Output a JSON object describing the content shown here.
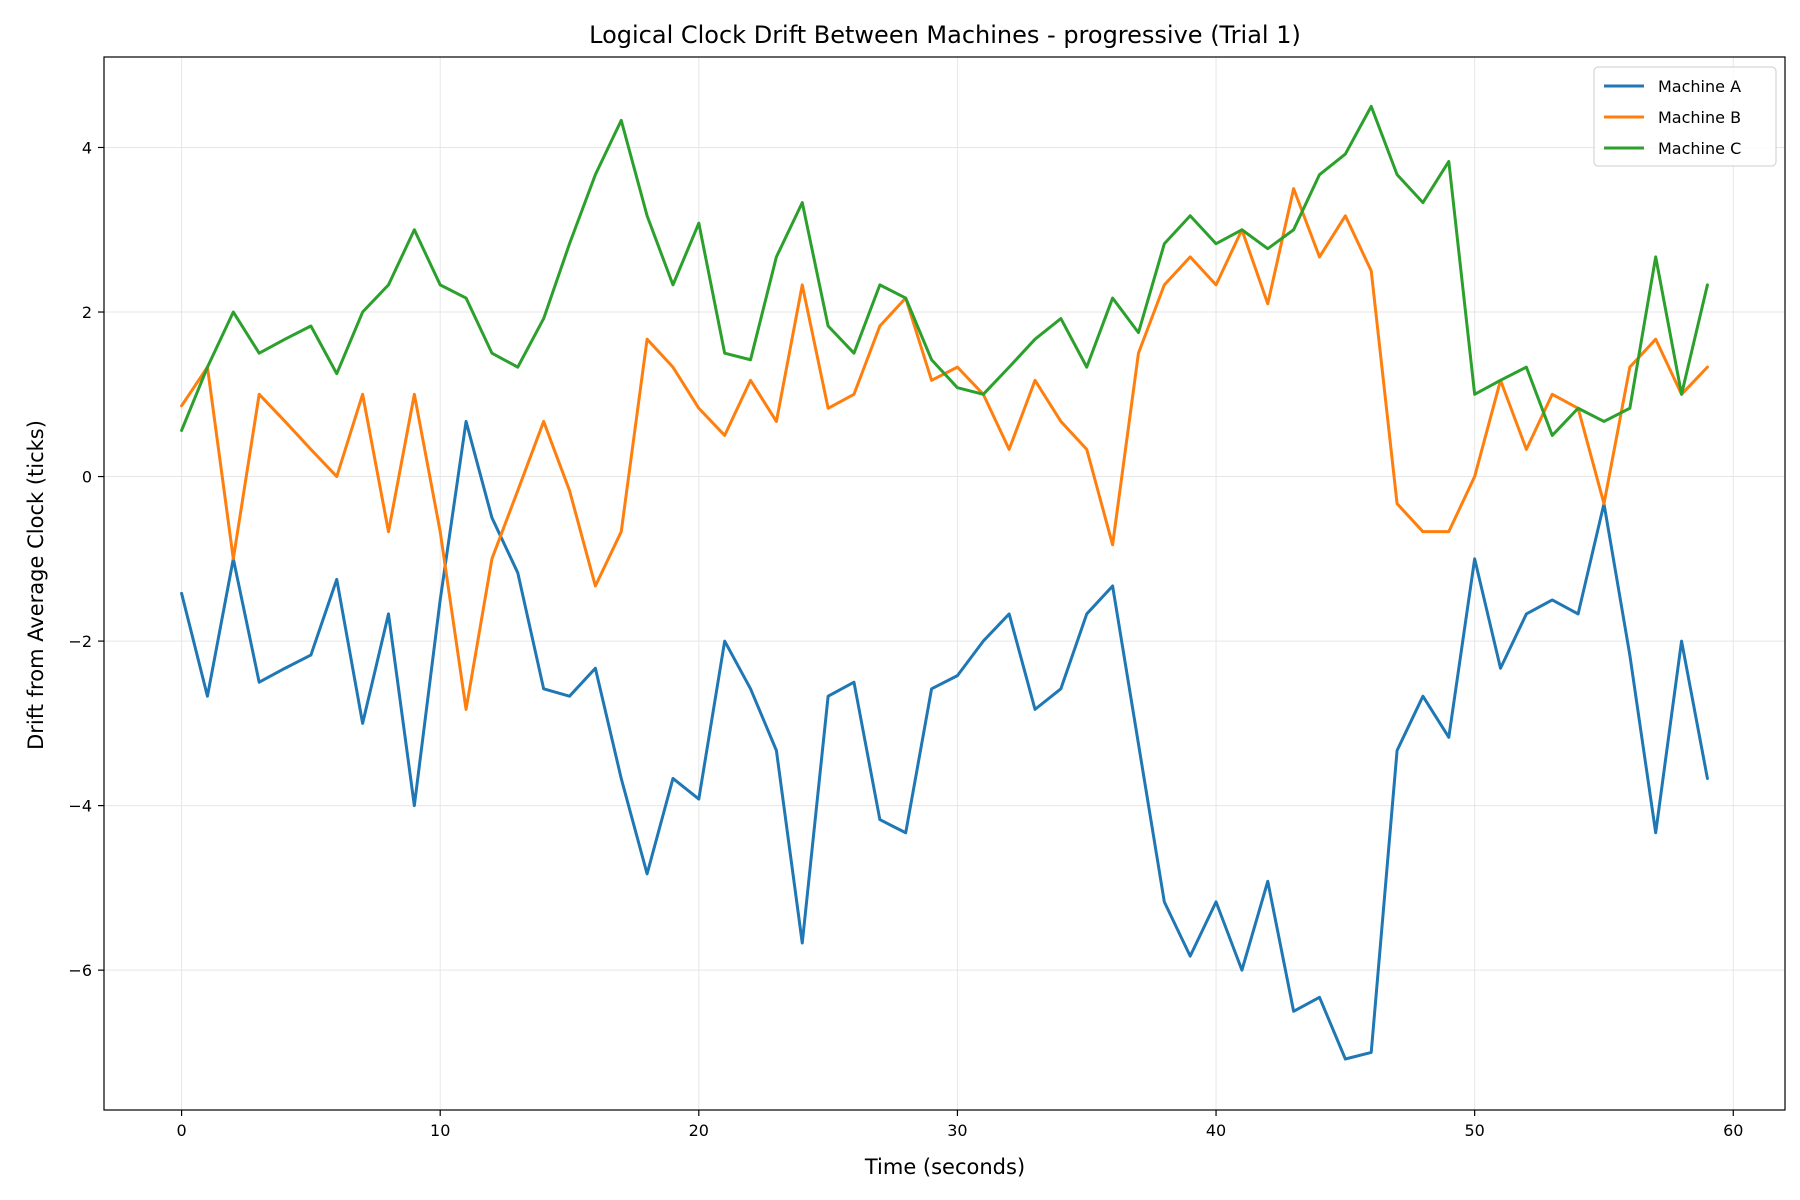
{
  "chart_data": {
    "type": "line",
    "title": "Logical Clock Drift Between Machines - progressive (Trial 1)",
    "xlabel": "Time (seconds)",
    "ylabel": "Drift from Average Clock (ticks)",
    "xlim": [
      -3,
      62
    ],
    "ylim": [
      -7.7,
      5.1
    ],
    "xticks": [
      0,
      10,
      20,
      30,
      40,
      50,
      60
    ],
    "yticks": [
      4,
      2,
      0,
      -2,
      -4,
      -6
    ],
    "ytick_labels": [
      "4",
      "2",
      "0",
      "−2",
      "−4",
      "−6"
    ],
    "grid": true,
    "legend_position": "top-right",
    "x": [
      0,
      1,
      2,
      3,
      4,
      5,
      6,
      7,
      8,
      9,
      10,
      11,
      12,
      13,
      14,
      15,
      16,
      17,
      18,
      19,
      20,
      21,
      22,
      23,
      24,
      25,
      26,
      27,
      28,
      29,
      30,
      31,
      32,
      33,
      34,
      35,
      36,
      37,
      38,
      39,
      40,
      41,
      42,
      43,
      44,
      45,
      46,
      47,
      48,
      49,
      50,
      51,
      52,
      53,
      54,
      55,
      56,
      57,
      58,
      59
    ],
    "series": [
      {
        "name": "Machine A",
        "color": "#1f77b4",
        "values": [
          -1.42,
          -2.67,
          -1.0,
          -2.5,
          -2.33,
          -2.17,
          -1.25,
          -3.0,
          -1.67,
          -4.0,
          -1.5,
          0.67,
          -0.5,
          -1.17,
          -2.58,
          -2.67,
          -2.33,
          -3.67,
          -4.83,
          -3.67,
          -3.92,
          -2.0,
          -2.58,
          -3.33,
          -5.67,
          -2.67,
          -2.5,
          -4.17,
          -4.33,
          -2.58,
          -2.42,
          -2.0,
          -1.67,
          -2.83,
          -2.58,
          -1.67,
          -1.33,
          -3.25,
          -5.17,
          -5.83,
          -5.17,
          -6.0,
          -4.92,
          -6.5,
          -6.33,
          -7.08,
          -7.0,
          -3.33,
          -2.67,
          -3.17,
          -1.0,
          -2.33,
          -1.67,
          -1.5,
          -1.67,
          -0.33,
          -2.17,
          -4.33,
          -2.0,
          -3.67
        ]
      },
      {
        "name": "Machine B",
        "color": "#ff7f0e",
        "values": [
          0.86,
          1.33,
          -1.0,
          1.0,
          0.67,
          0.33,
          0.0,
          1.0,
          -0.67,
          1.0,
          -0.67,
          -2.83,
          -1.0,
          -0.17,
          0.67,
          -0.17,
          -1.33,
          -0.67,
          1.67,
          1.33,
          0.83,
          0.5,
          1.17,
          0.67,
          2.33,
          0.83,
          1.0,
          1.83,
          2.17,
          1.17,
          1.33,
          1.0,
          0.33,
          1.17,
          0.67,
          0.33,
          -0.83,
          1.5,
          2.33,
          2.67,
          2.33,
          3.0,
          2.1,
          3.5,
          2.67,
          3.17,
          2.5,
          -0.33,
          -0.67,
          -0.67,
          0.0,
          1.17,
          0.33,
          1.0,
          0.83,
          -0.33,
          1.33,
          1.67,
          1.0,
          1.33
        ]
      },
      {
        "name": "Machine C",
        "color": "#2ca02c",
        "values": [
          0.56,
          1.33,
          2.0,
          1.5,
          1.67,
          1.83,
          1.25,
          2.0,
          2.33,
          3.0,
          2.33,
          2.17,
          1.5,
          1.33,
          1.92,
          2.83,
          3.67,
          4.33,
          3.17,
          2.33,
          3.08,
          1.5,
          1.42,
          2.67,
          3.33,
          1.83,
          1.5,
          2.33,
          2.17,
          1.42,
          1.08,
          1.0,
          1.33,
          1.67,
          1.92,
          1.33,
          2.17,
          1.75,
          2.83,
          3.17,
          2.83,
          3.0,
          2.77,
          3.0,
          3.67,
          3.92,
          4.5,
          3.67,
          3.33,
          3.83,
          1.0,
          1.17,
          1.33,
          0.5,
          0.83,
          0.67,
          0.83,
          2.67,
          1.0,
          2.33
        ]
      }
    ]
  }
}
